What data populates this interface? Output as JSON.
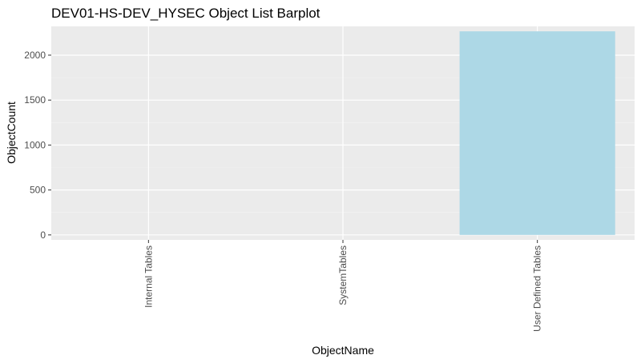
{
  "chart_data": {
    "type": "bar",
    "title": "DEV01-HS-DEV_HYSEC Object List Barplot",
    "xlabel": "ObjectName",
    "ylabel": "ObjectCount",
    "categories": [
      "Internal Tables",
      "SystemTables",
      "User Defined Tables"
    ],
    "values": [
      0,
      0,
      2265
    ],
    "ylim": [
      -55,
      2320
    ],
    "yticks": [
      0,
      500,
      1000,
      1500,
      2000
    ],
    "grid": true,
    "legend": "none",
    "colors": {
      "bar": "#add8e6",
      "panel": "#ebebeb",
      "grid_major": "#ffffff",
      "grid_minor": "#f2f2f2",
      "tick_text": "#4d4d4d"
    }
  }
}
